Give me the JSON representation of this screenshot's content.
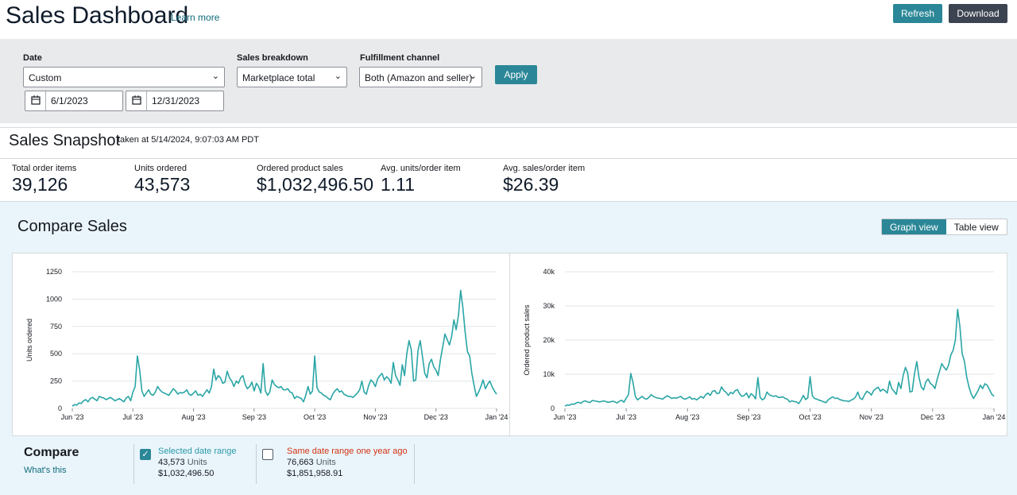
{
  "header": {
    "title": "Sales Dashboard",
    "learn_more": "Learn more",
    "refresh": "Refresh",
    "download": "Download"
  },
  "filters": {
    "date_label": "Date",
    "date_value": "Custom",
    "start_date": "6/1/2023",
    "end_date": "12/31/2023",
    "breakdown_label": "Sales breakdown",
    "breakdown_value": "Marketplace total",
    "fulfillment_label": "Fulfillment channel",
    "fulfillment_value": "Both (Amazon and seller)",
    "apply": "Apply"
  },
  "snapshot": {
    "title": "Sales Snapshot",
    "taken_at": "taken at 5/14/2024, 9:07:03 AM PDT",
    "metrics": [
      {
        "label": "Total order items",
        "value": "39,126"
      },
      {
        "label": "Units ordered",
        "value": "43,573"
      },
      {
        "label": "Ordered product sales",
        "value": "$1,032,496.50"
      },
      {
        "label": "Avg. units/order item",
        "value": "1.11"
      },
      {
        "label": "Avg. sales/order item",
        "value": "$26.39"
      }
    ]
  },
  "compare": {
    "title": "Compare Sales",
    "graph_view": "Graph view",
    "table_view": "Table view",
    "bottom_title": "Compare",
    "whats_this": "What's this",
    "selected": {
      "label": "Selected date range",
      "units": "43,573",
      "units_word": "Units",
      "sales": "$1,032,496.50",
      "checked": true,
      "color": "#2b9aa8"
    },
    "last_year": {
      "label": "Same date range one year ago",
      "units": "76,663",
      "units_word": "Units",
      "sales": "$1,851,958.91",
      "checked": false,
      "color": "#d13212"
    }
  },
  "colors": {
    "accent": "#2b8797",
    "line": "#2aa5a5"
  },
  "chart_data": [
    {
      "type": "line",
      "ylabel": "Units ordered",
      "xlabel": "",
      "x_ticks": [
        "Jun '23",
        "Jul '23",
        "Aug '23",
        "Sep '23",
        "Oct '23",
        "Nov '23",
        "Dec '23",
        "Jan '24"
      ],
      "y_ticks": [
        "0",
        "250",
        "500",
        "750",
        "1000",
        "1250"
      ],
      "ylim": [
        0,
        1250
      ],
      "grid": true,
      "series": [
        {
          "values": [
            20,
            35,
            30,
            50,
            45,
            70,
            80,
            60,
            90,
            100,
            85,
            70,
            110,
            100,
            95,
            80,
            90,
            100,
            85,
            70,
            80,
            90,
            75,
            60,
            95,
            110,
            70,
            150,
            200,
            480,
            350,
            160,
            110,
            140,
            170,
            130,
            120,
            150,
            200,
            170,
            150,
            140,
            130,
            120,
            150,
            180,
            160,
            130,
            145,
            140,
            150,
            170,
            130,
            120,
            140,
            160,
            120,
            130,
            110,
            140,
            170,
            140,
            200,
            360,
            260,
            300,
            280,
            230,
            240,
            340,
            280,
            250,
            200,
            250,
            230,
            280,
            300,
            220,
            180,
            200,
            240,
            160,
            230,
            200,
            140,
            410,
            160,
            120,
            150,
            260,
            220,
            200,
            190,
            200,
            170,
            170,
            180,
            150,
            140,
            90,
            110,
            100,
            90,
            60,
            120,
            200,
            130,
            160,
            480,
            190,
            150,
            140,
            120,
            110,
            90,
            80,
            130,
            160,
            180,
            150,
            160,
            130,
            120,
            110,
            110,
            100,
            120,
            140,
            170,
            250,
            150,
            130,
            210,
            260,
            240,
            200,
            270,
            300,
            320,
            260,
            290,
            270,
            230,
            420,
            300,
            260,
            210,
            400,
            300,
            500,
            620,
            540,
            250,
            260,
            530,
            620,
            470,
            320,
            280,
            410,
            450,
            380,
            350,
            300,
            450,
            560,
            680,
            630,
            580,
            660,
            810,
            720,
            850,
            1080,
            920,
            700,
            520,
            480,
            320,
            210,
            110,
            150,
            200,
            260,
            180,
            220,
            250,
            200,
            160,
            130
          ]
        }
      ]
    },
    {
      "type": "line",
      "ylabel": "Ordered product sales",
      "xlabel": "",
      "x_ticks": [
        "Jun '23",
        "Jul '23",
        "Aug '23",
        "Sep '23",
        "Oct '23",
        "Nov '23",
        "Dec '23",
        "Jan '24"
      ],
      "y_ticks": [
        "0",
        "10k",
        "20k",
        "30k",
        "40k"
      ],
      "ylim": [
        0,
        40000
      ],
      "grid": true,
      "series": [
        {
          "values": [
            700,
            1000,
            900,
            1300,
            1200,
            1600,
            1800,
            1500,
            2000,
            2200,
            1900,
            1700,
            2300,
            2200,
            2100,
            1900,
            2000,
            2200,
            2000,
            1800,
            1900,
            2100,
            1900,
            1600,
            2100,
            2400,
            1800,
            3000,
            4000,
            10200,
            7600,
            3500,
            2500,
            3000,
            3500,
            2900,
            2700,
            3200,
            4000,
            3500,
            3200,
            3000,
            2900,
            2700,
            3200,
            3700,
            3400,
            2900,
            3100,
            3000,
            3200,
            3500,
            2900,
            2700,
            3000,
            3400,
            2700,
            2900,
            2500,
            3000,
            3500,
            3000,
            4000,
            4500,
            3800,
            5000,
            5200,
            4300,
            4500,
            6300,
            5200,
            4700,
            3800,
            4700,
            4300,
            5200,
            5500,
            4200,
            3500,
            3800,
            4500,
            3100,
            4300,
            3800,
            2800,
            9000,
            3200,
            2500,
            3000,
            4800,
            4000,
            3700,
            3500,
            3700,
            3200,
            3200,
            3400,
            2900,
            2700,
            1900,
            2200,
            2000,
            1900,
            1400,
            2400,
            3800,
            2600,
            3100,
            9300,
            3700,
            2900,
            2700,
            2400,
            2200,
            1900,
            1700,
            2500,
            3000,
            3400,
            2900,
            3000,
            2600,
            2400,
            2200,
            2200,
            2000,
            2400,
            2700,
            3300,
            4800,
            3000,
            2600,
            4000,
            5000,
            4600,
            3900,
            5200,
            5800,
            6200,
            5000,
            5600,
            5200,
            4500,
            8000,
            5800,
            5000,
            4100,
            7600,
            5800,
            9600,
            12000,
            10400,
            4800,
            5000,
            10200,
            13700,
            9000,
            6200,
            5400,
            7800,
            8600,
            7300,
            6800,
            5800,
            8600,
            10800,
            13100,
            12100,
            11200,
            12700,
            15600,
            17000,
            20000,
            29000,
            24000,
            16000,
            13700,
            9200,
            6200,
            4200,
            2900,
            4000,
            5200,
            6800,
            5800,
            7200,
            6800,
            5500,
            4200,
            3500
          ]
        }
      ]
    }
  ]
}
